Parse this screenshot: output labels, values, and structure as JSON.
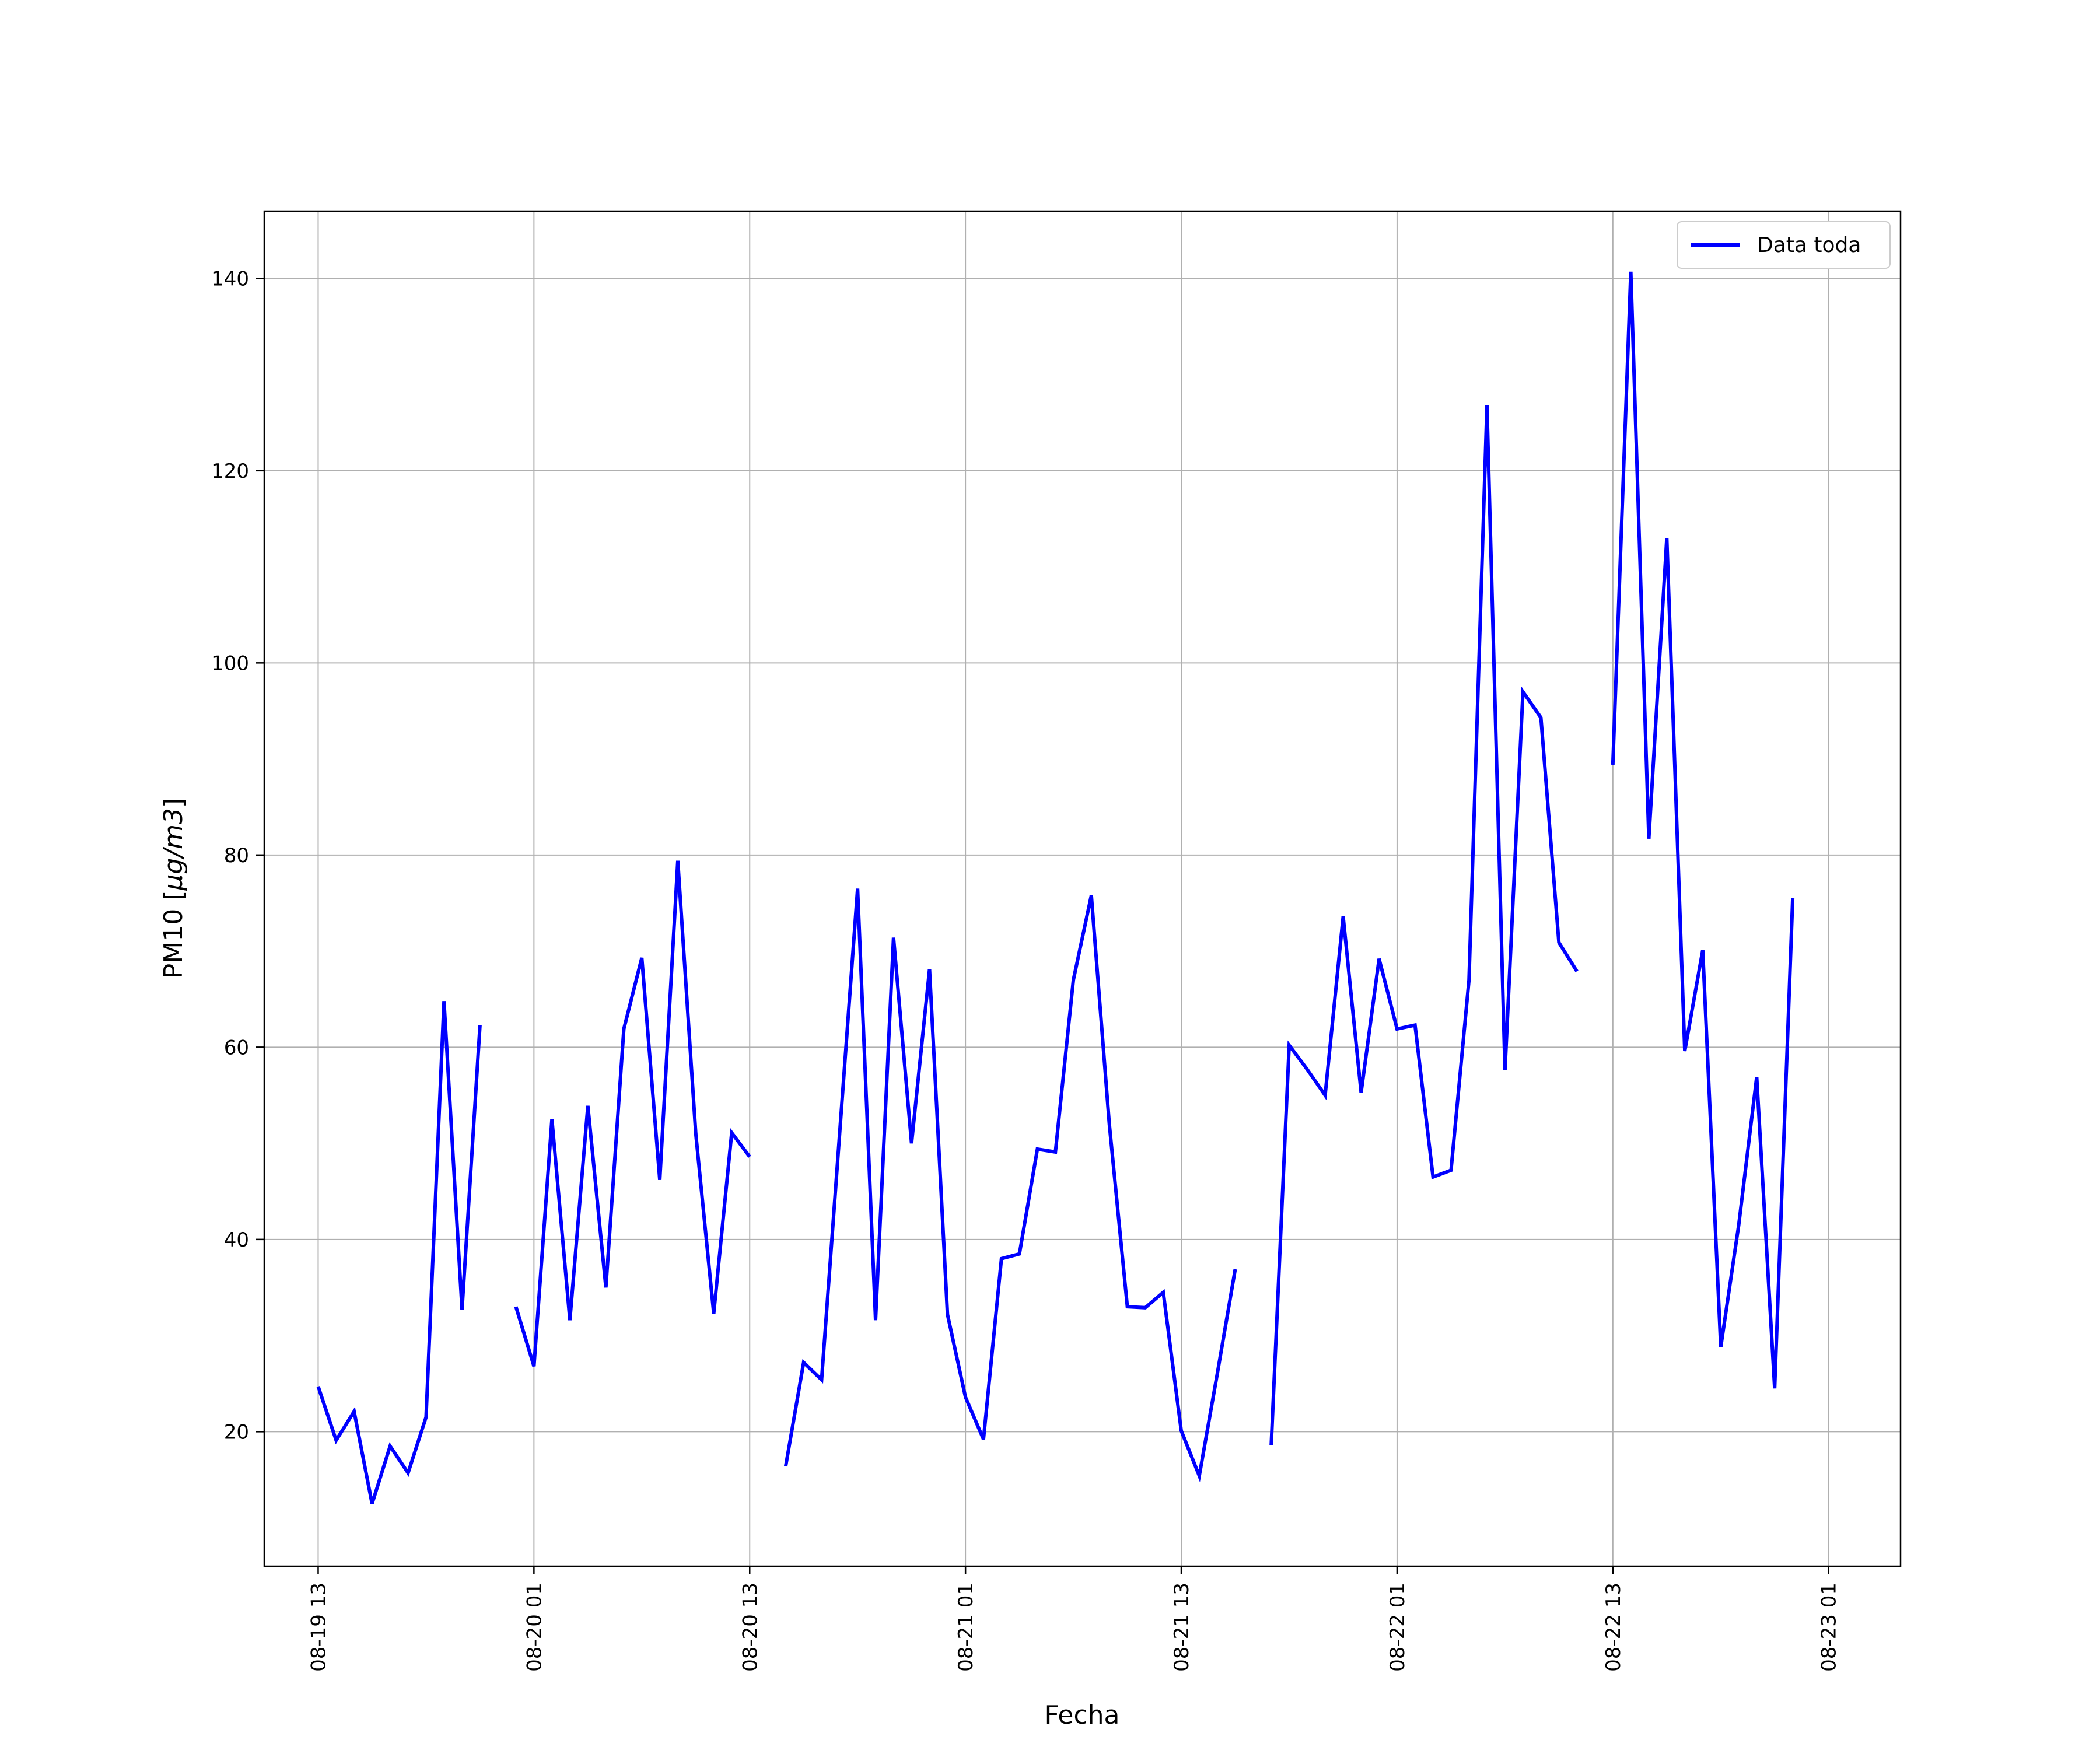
{
  "chart_data": {
    "type": "line",
    "xlabel": "Fecha",
    "ylabel_text": "PM10 [",
    "ylabel_math": "μg/m3",
    "ylabel_close": "]",
    "xlim": [
      "2020-08-19T10:00",
      "2020-08-23T05:00"
    ],
    "ylim": [
      6,
      147
    ],
    "x_ticks": [
      {
        "t": "2020-08-19T13:00",
        "label": "08-19 13"
      },
      {
        "t": "2020-08-20T01:00",
        "label": "08-20 01"
      },
      {
        "t": "2020-08-20T13:00",
        "label": "08-20 13"
      },
      {
        "t": "2020-08-21T01:00",
        "label": "08-21 01"
      },
      {
        "t": "2020-08-21T13:00",
        "label": "08-21 13"
      },
      {
        "t": "2020-08-22T01:00",
        "label": "08-22 01"
      },
      {
        "t": "2020-08-22T13:00",
        "label": "08-22 13"
      },
      {
        "t": "2020-08-23T01:00",
        "label": "08-23 01"
      }
    ],
    "y_ticks": [
      20,
      40,
      60,
      80,
      100,
      120,
      140
    ],
    "grid": true,
    "legend_position": "top-right",
    "series": [
      {
        "name": "Data toda",
        "color": "#0000ff",
        "start": "2020-08-19T13:00",
        "step_hours": 1,
        "values": [
          24.7,
          19.1,
          22.1,
          12.5,
          18.5,
          15.7,
          21.5,
          64.8,
          32.7,
          62.3,
          null,
          33.0,
          26.8,
          52.5,
          31.6,
          53.9,
          35.0,
          61.9,
          69.3,
          46.2,
          79.4,
          51.0,
          32.3,
          51.1,
          48.6,
          null,
          16.4,
          27.2,
          25.4,
          51.0,
          76.5,
          31.6,
          71.4,
          50.0,
          68.1,
          32.2,
          23.6,
          19.2,
          38.0,
          38.5,
          49.4,
          49.1,
          67.0,
          75.8,
          52.0,
          33.0,
          32.9,
          34.5,
          20.1,
          15.4,
          26.0,
          36.9,
          null,
          18.6,
          60.2,
          57.7,
          55.0,
          73.6,
          55.3,
          69.2,
          61.9,
          62.3,
          46.5,
          47.2,
          67.0,
          126.8,
          57.6,
          97.0,
          94.3,
          70.9,
          67.9,
          null,
          89.4,
          140.7,
          81.7,
          113.0,
          59.6,
          70.1,
          28.8,
          41.5,
          56.9,
          24.5,
          75.5
        ]
      }
    ]
  }
}
